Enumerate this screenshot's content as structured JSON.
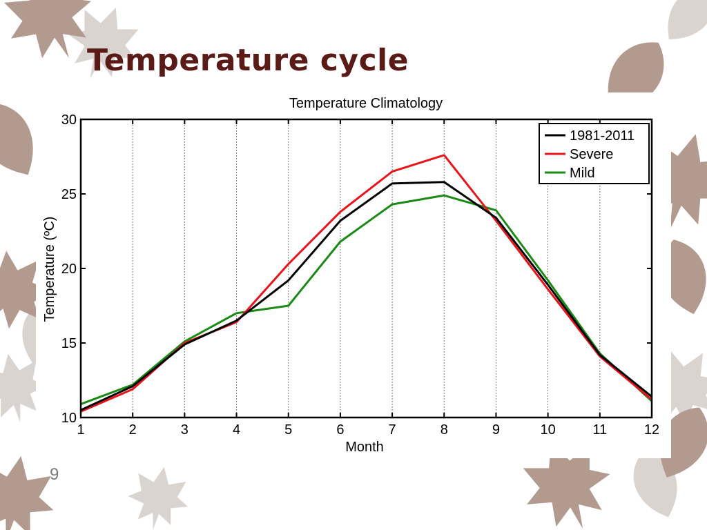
{
  "slide": {
    "title": "Temperature cycle",
    "page_number": "9"
  },
  "decor": {
    "leaf_colors": [
      "#b29a8f",
      "#d6d0cb"
    ],
    "leaf_icon": "maple-leaf-icon"
  },
  "chart_data": {
    "type": "line",
    "title": "Temperature Climatology",
    "xlabel": "Month",
    "ylabel": "Temperature (ºC)",
    "x": [
      1,
      2,
      3,
      4,
      5,
      6,
      7,
      8,
      9,
      10,
      11,
      12
    ],
    "xlim": [
      1,
      12
    ],
    "ylim": [
      10,
      30
    ],
    "xticks": [
      "1",
      "2",
      "3",
      "4",
      "5",
      "6",
      "7",
      "8",
      "9",
      "10",
      "11",
      "12"
    ],
    "yticks": [
      "10",
      "15",
      "20",
      "25",
      "30"
    ],
    "grid": "vertical dotted",
    "legend_position": "top-right",
    "series": [
      {
        "name": "1981-2011",
        "color": "#000000",
        "values": [
          10.5,
          12.1,
          14.9,
          16.5,
          19.2,
          23.2,
          25.7,
          25.8,
          23.4,
          18.9,
          14.2,
          11.4
        ]
      },
      {
        "name": "Severe",
        "color": "#e8141a",
        "values": [
          10.4,
          11.9,
          15.0,
          16.4,
          20.3,
          23.8,
          26.5,
          27.6,
          23.2,
          18.6,
          14.1,
          11.2
        ]
      },
      {
        "name": "Mild",
        "color": "#1a8a14",
        "values": [
          10.9,
          12.2,
          15.1,
          17.0,
          17.5,
          21.8,
          24.3,
          24.9,
          23.9,
          19.2,
          14.3,
          11.1
        ]
      }
    ]
  }
}
